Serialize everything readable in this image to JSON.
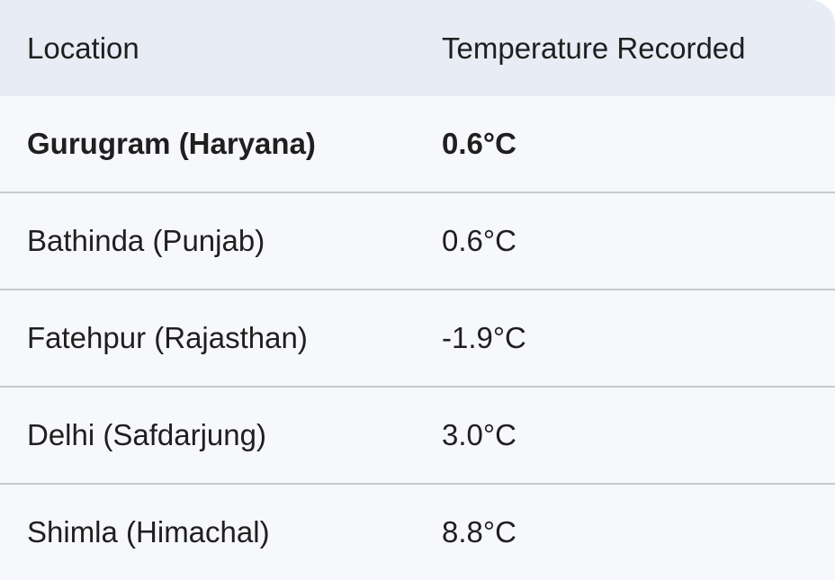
{
  "table": {
    "headers": [
      "Location",
      "Temperature Recorded"
    ],
    "rows": [
      {
        "location": "Gurugram (Haryana)",
        "temperature": "0.6°C"
      },
      {
        "location": "Bathinda (Punjab)",
        "temperature": "0.6°C"
      },
      {
        "location": "Fatehpur (Rajasthan)",
        "temperature": "-1.9°C"
      },
      {
        "location": "Delhi (Safdarjung)",
        "temperature": "3.0°C"
      },
      {
        "location": "Shimla (Himachal)",
        "temperature": "8.8°C"
      }
    ]
  }
}
